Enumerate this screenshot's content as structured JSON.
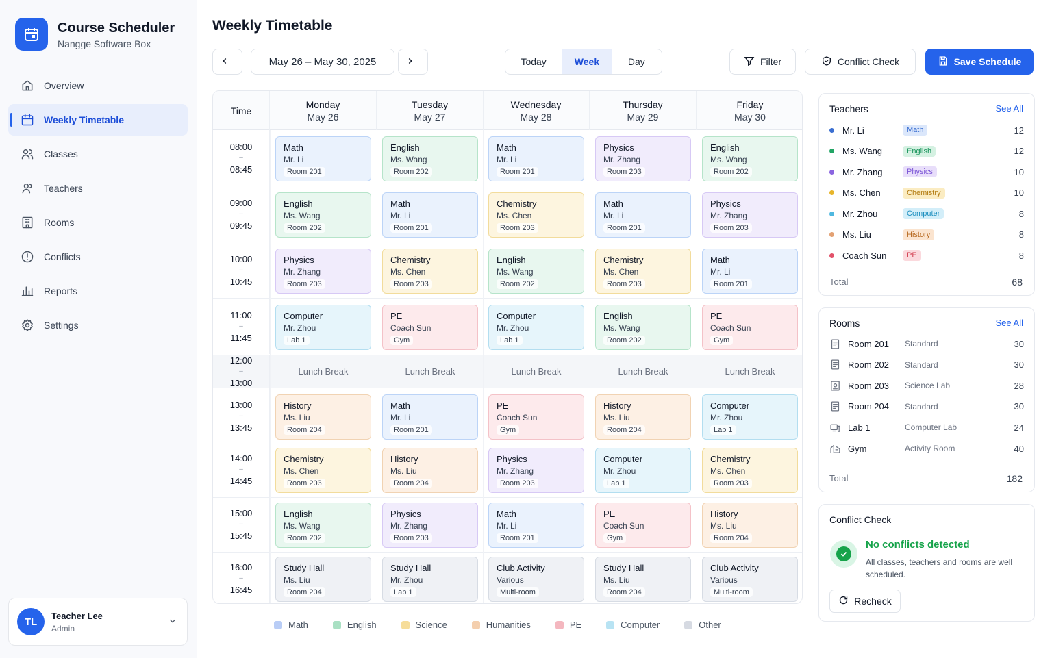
{
  "brand": {
    "title": "Course Scheduler",
    "subtitle": "Nangge Software Box"
  },
  "nav": [
    {
      "label": "Overview",
      "icon": "home-icon"
    },
    {
      "label": "Weekly Timetable",
      "icon": "calendar-icon",
      "active": true
    },
    {
      "label": "Classes",
      "icon": "users-icon"
    },
    {
      "label": "Teachers",
      "icon": "user-icon"
    },
    {
      "label": "Rooms",
      "icon": "building-icon"
    },
    {
      "label": "Conflicts",
      "icon": "alert-circle-icon"
    },
    {
      "label": "Reports",
      "icon": "bar-chart-icon"
    },
    {
      "label": "Settings",
      "icon": "gear-icon"
    }
  ],
  "user": {
    "initials": "TL",
    "name": "Teacher Lee",
    "role": "Admin"
  },
  "page": {
    "title": "Weekly Timetable"
  },
  "toolbar": {
    "date_range": "May 26 – May 30, 2025",
    "today": "Today",
    "week": "Week",
    "day": "Day",
    "filter": "Filter",
    "conflict_check": "Conflict Check",
    "save": "Save Schedule"
  },
  "colors": {
    "Math": {
      "bg": "#eaf2fd",
      "border": "#bcd4f7",
      "tag": "#dbe7fb",
      "tagText": "#3b6fd1",
      "swatch": "#b9cdf6"
    },
    "English": {
      "bg": "#e8f7ef",
      "border": "#b6e4ca",
      "tag": "#d5f1e2",
      "tagText": "#17935a",
      "swatch": "#a9e0c3"
    },
    "Physics": {
      "bg": "#f1ecfc",
      "border": "#d7c9f5",
      "tag": "#e8defa",
      "tagText": "#7b55d6",
      "swatch": "#d3c4f3"
    },
    "Chemistry": {
      "bg": "#fdf5df",
      "border": "#f2dc9c",
      "tag": "#fbecc2",
      "tagText": "#b27a0e",
      "swatch": "#f6dd9a"
    },
    "Computer": {
      "bg": "#e6f5fb",
      "border": "#b3def0",
      "tag": "#d3eef9",
      "tagText": "#1e8fbf",
      "swatch": "#b8e3f3"
    },
    "History": {
      "bg": "#fdf0e4",
      "border": "#f1d3b3",
      "tag": "#fbe4cf",
      "tagText": "#b86b23",
      "swatch": "#f4cfae"
    },
    "PE": {
      "bg": "#fdeaec",
      "border": "#f4c2c8",
      "tag": "#fbd9dd",
      "tagText": "#d13c4d",
      "swatch": "#f4b7bf"
    },
    "Other": {
      "bg": "#eff1f5",
      "border": "#d7dce4",
      "tag": "#e3e6ec",
      "tagText": "#4b5563",
      "swatch": "#d6dae2"
    }
  },
  "timetable": {
    "time_header": "Time",
    "days": [
      {
        "name": "Monday",
        "date": "May 26"
      },
      {
        "name": "Tuesday",
        "date": "May 27"
      },
      {
        "name": "Wednesday",
        "date": "May 28"
      },
      {
        "name": "Thursday",
        "date": "May 29"
      },
      {
        "name": "Friday",
        "date": "May 30"
      }
    ],
    "lunch": {
      "start": "12:00",
      "end": "13:00",
      "label": "Lunch Break"
    },
    "slots": [
      {
        "start": "08:00",
        "end": "08:45",
        "classes": [
          {
            "subject": "Math",
            "teacher": "Mr. Li",
            "room": "Room 201",
            "color": "Math"
          },
          {
            "subject": "English",
            "teacher": "Ms. Wang",
            "room": "Room 202",
            "color": "English"
          },
          {
            "subject": "Math",
            "teacher": "Mr. Li",
            "room": "Room 201",
            "color": "Math"
          },
          {
            "subject": "Physics",
            "teacher": "Mr. Zhang",
            "room": "Room 203",
            "color": "Physics"
          },
          {
            "subject": "English",
            "teacher": "Ms. Wang",
            "room": "Room 202",
            "color": "English"
          }
        ]
      },
      {
        "start": "09:00",
        "end": "09:45",
        "classes": [
          {
            "subject": "English",
            "teacher": "Ms. Wang",
            "room": "Room 202",
            "color": "English"
          },
          {
            "subject": "Math",
            "teacher": "Mr. Li",
            "room": "Room 201",
            "color": "Math"
          },
          {
            "subject": "Chemistry",
            "teacher": "Ms. Chen",
            "room": "Room 203",
            "color": "Chemistry"
          },
          {
            "subject": "Math",
            "teacher": "Mr. Li",
            "room": "Room 201",
            "color": "Math"
          },
          {
            "subject": "Physics",
            "teacher": "Mr. Zhang",
            "room": "Room 203",
            "color": "Physics"
          }
        ]
      },
      {
        "start": "10:00",
        "end": "10:45",
        "classes": [
          {
            "subject": "Physics",
            "teacher": "Mr. Zhang",
            "room": "Room 203",
            "color": "Physics"
          },
          {
            "subject": "Chemistry",
            "teacher": "Ms. Chen",
            "room": "Room 203",
            "color": "Chemistry"
          },
          {
            "subject": "English",
            "teacher": "Ms. Wang",
            "room": "Room 202",
            "color": "English"
          },
          {
            "subject": "Chemistry",
            "teacher": "Ms. Chen",
            "room": "Room 203",
            "color": "Chemistry"
          },
          {
            "subject": "Math",
            "teacher": "Mr. Li",
            "room": "Room 201",
            "color": "Math"
          }
        ]
      },
      {
        "start": "11:00",
        "end": "11:45",
        "classes": [
          {
            "subject": "Computer",
            "teacher": "Mr. Zhou",
            "room": "Lab 1",
            "color": "Computer"
          },
          {
            "subject": "PE",
            "teacher": "Coach Sun",
            "room": "Gym",
            "color": "PE"
          },
          {
            "subject": "Computer",
            "teacher": "Mr. Zhou",
            "room": "Lab 1",
            "color": "Computer"
          },
          {
            "subject": "English",
            "teacher": "Ms. Wang",
            "room": "Room 202",
            "color": "English"
          },
          {
            "subject": "PE",
            "teacher": "Coach Sun",
            "room": "Gym",
            "color": "PE"
          }
        ]
      },
      {
        "start": "13:00",
        "end": "13:45",
        "classes": [
          {
            "subject": "History",
            "teacher": "Ms. Liu",
            "room": "Room 204",
            "color": "History"
          },
          {
            "subject": "Math",
            "teacher": "Mr. Li",
            "room": "Room 201",
            "color": "Math"
          },
          {
            "subject": "PE",
            "teacher": "Coach Sun",
            "room": "Gym",
            "color": "PE"
          },
          {
            "subject": "History",
            "teacher": "Ms. Liu",
            "room": "Room 204",
            "color": "History"
          },
          {
            "subject": "Computer",
            "teacher": "Mr. Zhou",
            "room": "Lab 1",
            "color": "Computer"
          }
        ]
      },
      {
        "start": "14:00",
        "end": "14:45",
        "classes": [
          {
            "subject": "Chemistry",
            "teacher": "Ms. Chen",
            "room": "Room 203",
            "color": "Chemistry"
          },
          {
            "subject": "History",
            "teacher": "Ms. Liu",
            "room": "Room 204",
            "color": "History"
          },
          {
            "subject": "Physics",
            "teacher": "Mr. Zhang",
            "room": "Room 203",
            "color": "Physics"
          },
          {
            "subject": "Computer",
            "teacher": "Mr. Zhou",
            "room": "Lab 1",
            "color": "Computer"
          },
          {
            "subject": "Chemistry",
            "teacher": "Ms. Chen",
            "room": "Room 203",
            "color": "Chemistry"
          }
        ]
      },
      {
        "start": "15:00",
        "end": "15:45",
        "classes": [
          {
            "subject": "English",
            "teacher": "Ms. Wang",
            "room": "Room 202",
            "color": "English"
          },
          {
            "subject": "Physics",
            "teacher": "Mr. Zhang",
            "room": "Room 203",
            "color": "Physics"
          },
          {
            "subject": "Math",
            "teacher": "Mr. Li",
            "room": "Room 201",
            "color": "Math"
          },
          {
            "subject": "PE",
            "teacher": "Coach Sun",
            "room": "Gym",
            "color": "PE"
          },
          {
            "subject": "History",
            "teacher": "Ms. Liu",
            "room": "Room 204",
            "color": "History"
          }
        ]
      },
      {
        "start": "16:00",
        "end": "16:45",
        "classes": [
          {
            "subject": "Study Hall",
            "teacher": "Ms. Liu",
            "room": "Room 204",
            "color": "Other"
          },
          {
            "subject": "Study Hall",
            "teacher": "Mr. Zhou",
            "room": "Lab 1",
            "color": "Other"
          },
          {
            "subject": "Club Activity",
            "teacher": "Various",
            "room": "Multi-room",
            "color": "Other"
          },
          {
            "subject": "Study Hall",
            "teacher": "Ms. Liu",
            "room": "Room 204",
            "color": "Other"
          },
          {
            "subject": "Club Activity",
            "teacher": "Various",
            "room": "Multi-room",
            "color": "Other"
          }
        ]
      }
    ]
  },
  "legend": [
    {
      "label": "Math",
      "color": "Math"
    },
    {
      "label": "English",
      "color": "English"
    },
    {
      "label": "Science",
      "color": "Chemistry"
    },
    {
      "label": "Humanities",
      "color": "History"
    },
    {
      "label": "PE",
      "color": "PE"
    },
    {
      "label": "Computer",
      "color": "Computer"
    },
    {
      "label": "Other",
      "color": "Other"
    }
  ],
  "teachers": {
    "title": "Teachers",
    "see_all": "See All",
    "items": [
      {
        "name": "Mr. Li",
        "subject": "Math",
        "count": "12",
        "dot": "#3b6fd1",
        "color": "Math"
      },
      {
        "name": "Ms. Wang",
        "subject": "English",
        "count": "12",
        "dot": "#22a565",
        "color": "English"
      },
      {
        "name": "Mr. Zhang",
        "subject": "Physics",
        "count": "10",
        "dot": "#8b65e0",
        "color": "Physics"
      },
      {
        "name": "Ms. Chen",
        "subject": "Chemistry",
        "count": "10",
        "dot": "#e7b52b",
        "color": "Chemistry"
      },
      {
        "name": "Mr. Zhou",
        "subject": "Computer",
        "count": "8",
        "dot": "#4fb8e0",
        "color": "Computer"
      },
      {
        "name": "Ms. Liu",
        "subject": "History",
        "count": "8",
        "dot": "#e3a173",
        "color": "History"
      },
      {
        "name": "Coach Sun",
        "subject": "PE",
        "count": "8",
        "dot": "#e2526a",
        "color": "PE"
      }
    ],
    "total_label": "Total",
    "total": "68"
  },
  "rooms": {
    "title": "Rooms",
    "see_all": "See All",
    "items": [
      {
        "name": "Room 201",
        "type": "Standard",
        "capacity": "30",
        "icon": "room-icon"
      },
      {
        "name": "Room 202",
        "type": "Standard",
        "capacity": "30",
        "icon": "room-icon"
      },
      {
        "name": "Room 203",
        "type": "Science Lab",
        "capacity": "28",
        "icon": "lab-icon"
      },
      {
        "name": "Room 204",
        "type": "Standard",
        "capacity": "30",
        "icon": "room-icon"
      },
      {
        "name": "Lab 1",
        "type": "Computer Lab",
        "capacity": "24",
        "icon": "computer-icon"
      },
      {
        "name": "Gym",
        "type": "Activity Room",
        "capacity": "40",
        "icon": "gym-icon"
      }
    ],
    "total_label": "Total",
    "total": "182"
  },
  "conflict": {
    "title": "Conflict Check",
    "status": "No conflicts detected",
    "description": "All classes, teachers and rooms are well scheduled.",
    "recheck": "Recheck"
  }
}
